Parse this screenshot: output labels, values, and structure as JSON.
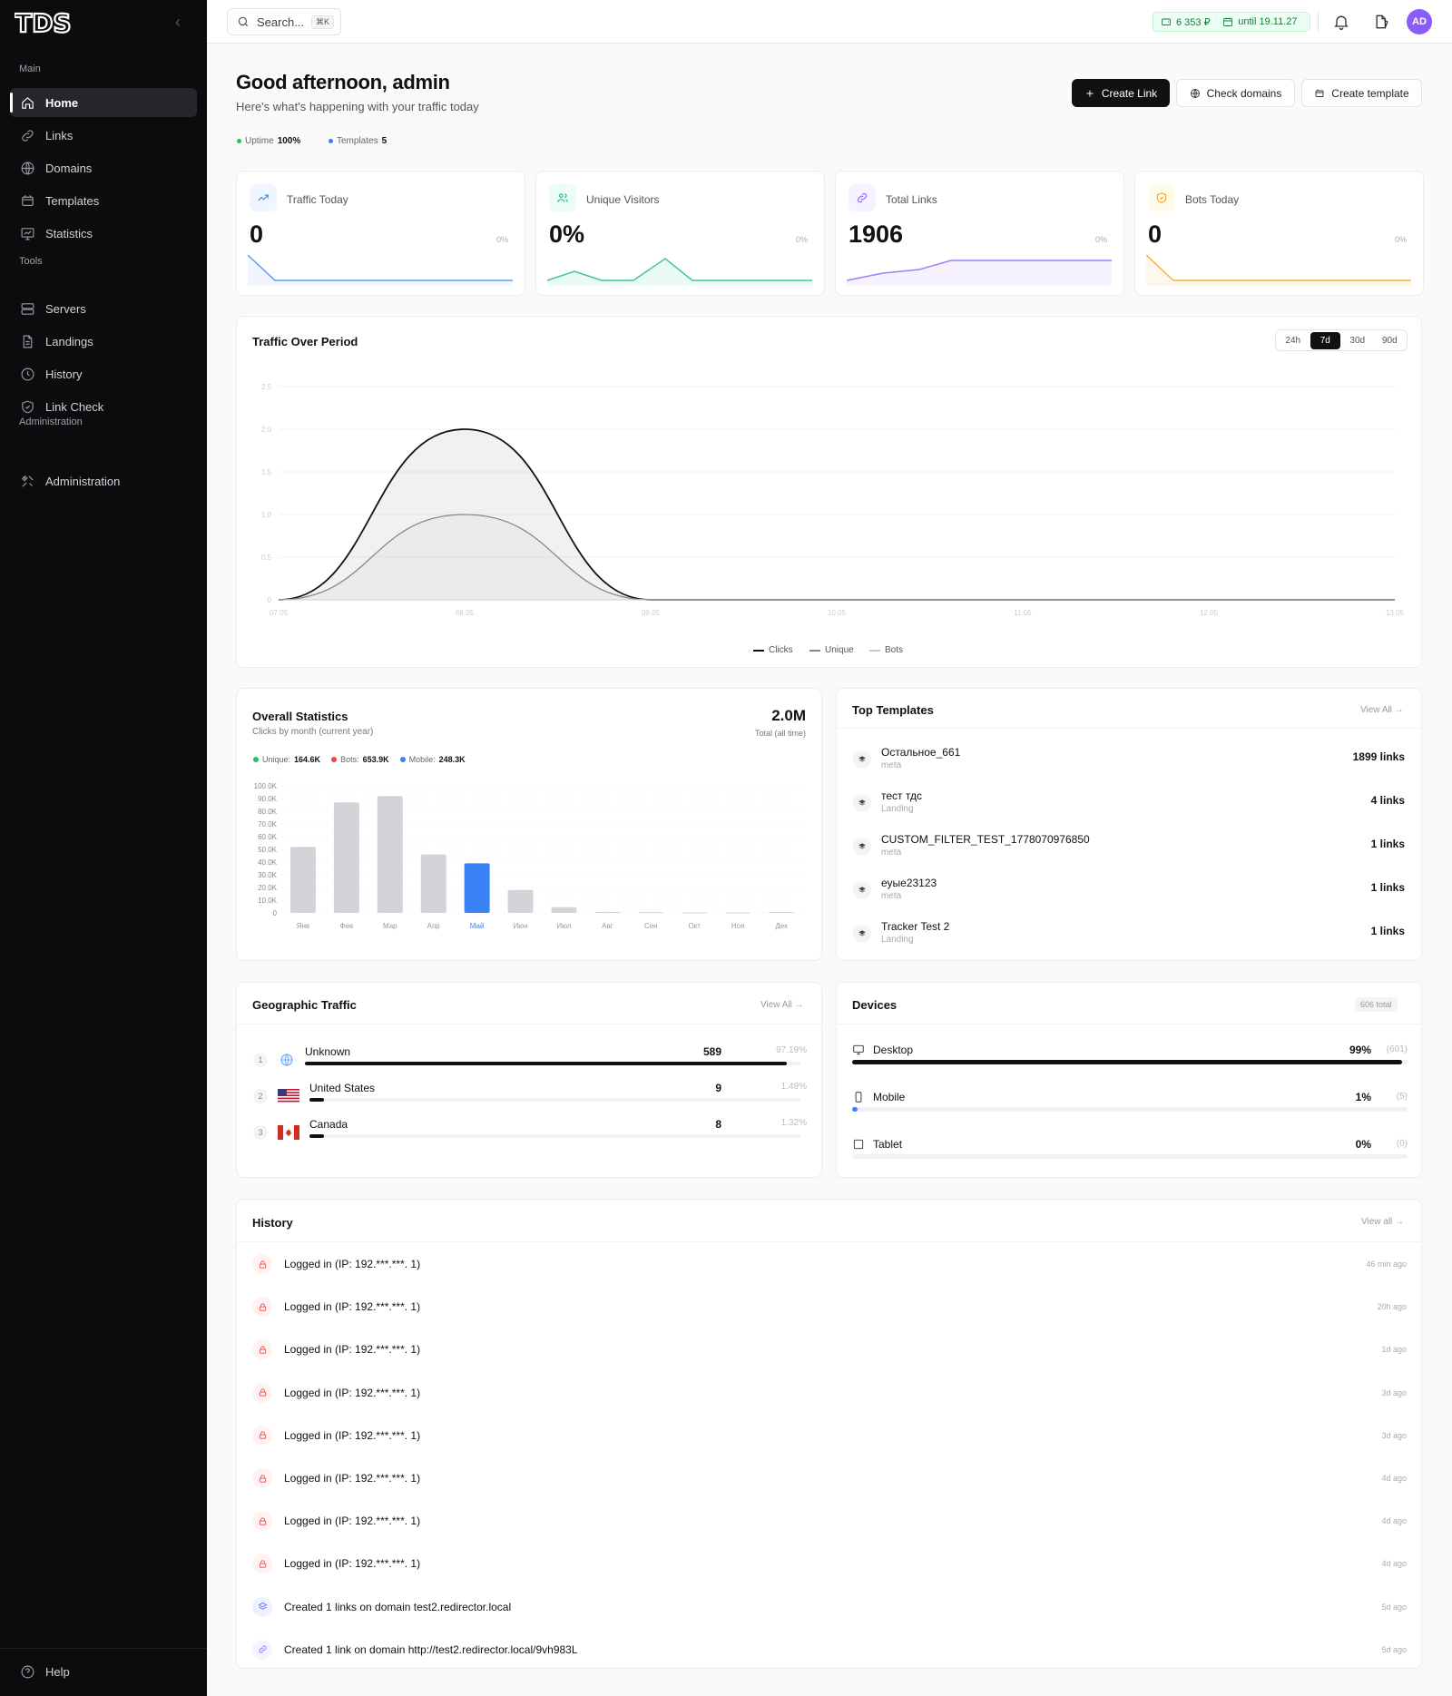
{
  "sidebar": {
    "logo": "TDS",
    "sections": [
      "Main",
      "Tools",
      "Administration"
    ],
    "main_items": [
      {
        "label": "Home",
        "icon": "home-icon"
      },
      {
        "label": "Links",
        "icon": "link-icon"
      },
      {
        "label": "Domains",
        "icon": "globe-icon"
      },
      {
        "label": "Templates",
        "icon": "template-icon"
      },
      {
        "label": "Statistics",
        "icon": "chart-icon"
      }
    ],
    "tools_items": [
      {
        "label": "Servers",
        "icon": "server-icon"
      },
      {
        "label": "Landings",
        "icon": "file-icon"
      },
      {
        "label": "History",
        "icon": "clock-icon"
      },
      {
        "label": "Link Check",
        "icon": "shield-check-icon"
      }
    ],
    "admin_items": [
      {
        "label": "Administration",
        "icon": "tools-icon"
      }
    ],
    "help": "Help"
  },
  "topbar": {
    "search_placeholder": "Search...",
    "shortcut": "⌘K",
    "balance": "6 353 ₽",
    "until": "until 19.11.27",
    "avatar": "AD"
  },
  "header": {
    "greeting": "Good afternoon, admin",
    "subtitle": "Here's what's happening with your traffic today",
    "uptime_label": "Uptime",
    "uptime_value": "100%",
    "templates_label": "Templates",
    "templates_value": "5",
    "buttons": {
      "create_link": "Create Link",
      "check_domains": "Check domains",
      "create_template": "Create template"
    }
  },
  "stats": [
    {
      "label": "Traffic Today",
      "value": "0",
      "pct": "0%",
      "color": "#3b82f6",
      "bg": "#eff6ff"
    },
    {
      "label": "Unique Visitors",
      "value": "0%",
      "pct": "0%",
      "color": "#10b981",
      "bg": "#ecfdf5"
    },
    {
      "label": "Total Links",
      "value": "1906",
      "pct": "0%",
      "color": "#8b5cf6",
      "bg": "#f5f3ff"
    },
    {
      "label": "Bots Today",
      "value": "0",
      "pct": "0%",
      "color": "#f59e0b",
      "bg": "#fffbeb"
    }
  ],
  "traffic": {
    "title": "Traffic Over Period",
    "ranges": [
      "24h",
      "7d",
      "30d",
      "90d"
    ],
    "active_range": "7d",
    "legend": [
      "Clicks",
      "Unique",
      "Bots"
    ]
  },
  "overall": {
    "title": "Overall Statistics",
    "subtitle": "Clicks by month (current year)",
    "total": "2.0M",
    "total_label": "Total (all time)",
    "badges": [
      {
        "label": "Unique:",
        "value": "164.6K",
        "color": "#22c55e"
      },
      {
        "label": "Bots:",
        "value": "653.9K",
        "color": "#ef4444"
      },
      {
        "label": "Mobile:",
        "value": "248.3K",
        "color": "#3b82f6"
      }
    ]
  },
  "top_templates": {
    "title": "Top Templates",
    "view_all": "View All →",
    "items": [
      {
        "name": "Остальное_661",
        "type": "meta",
        "count": "1899 links"
      },
      {
        "name": "тест тдс",
        "type": "Landing",
        "count": "4 links"
      },
      {
        "name": "CUSTOM_FILTER_TEST_1778070976850",
        "type": "meta",
        "count": "1 links"
      },
      {
        "name": "еуые23123",
        "type": "meta",
        "count": "1 links"
      },
      {
        "name": "Tracker Test 2",
        "type": "Landing",
        "count": "1 links"
      }
    ]
  },
  "geo": {
    "title": "Geographic Traffic",
    "view_all": "View All →",
    "items": [
      {
        "rank": "1",
        "name": "Unknown",
        "count": "589",
        "pct": "97.19%",
        "share": 0.9719
      },
      {
        "rank": "2",
        "name": "United States",
        "count": "9",
        "pct": "1.49%",
        "share": 0.0149
      },
      {
        "rank": "3",
        "name": "Canada",
        "count": "8",
        "pct": "1.32%",
        "share": 0.0132
      }
    ]
  },
  "devices": {
    "title": "Devices",
    "total": "606 total",
    "items": [
      {
        "name": "Desktop",
        "pct": "99%",
        "count": "(601)",
        "share": 0.99,
        "color": "#111"
      },
      {
        "name": "Mobile",
        "pct": "1%",
        "count": "(5)",
        "share": 0.01,
        "color": "#3b82f6"
      },
      {
        "name": "Tablet",
        "pct": "0%",
        "count": "(0)",
        "share": 0,
        "color": "#111"
      }
    ]
  },
  "history": {
    "title": "History",
    "view_all": "View all →",
    "items": [
      {
        "text": "Logged in (IP: 192.***.***. 1)",
        "time": "46 min ago",
        "kind": "login"
      },
      {
        "text": "Logged in (IP: 192.***.***. 1)",
        "time": "20h ago",
        "kind": "login"
      },
      {
        "text": "Logged in (IP: 192.***.***. 1)",
        "time": "1d ago",
        "kind": "login"
      },
      {
        "text": "Logged in (IP: 192.***.***. 1)",
        "time": "3d ago",
        "kind": "login"
      },
      {
        "text": "Logged in (IP: 192.***.***. 1)",
        "time": "3d ago",
        "kind": "login"
      },
      {
        "text": "Logged in (IP: 192.***.***. 1)",
        "time": "4d ago",
        "kind": "login"
      },
      {
        "text": "Logged in (IP: 192.***.***. 1)",
        "time": "4d ago",
        "kind": "login"
      },
      {
        "text": "Logged in (IP: 192.***.***. 1)",
        "time": "4d ago",
        "kind": "login"
      },
      {
        "text": "Created 1 links on domain test2.redirector.local",
        "time": "5d ago",
        "kind": "layers"
      },
      {
        "text": "Created 1 link on domain http://test2.redirector.local/9vh983L",
        "time": "5d ago",
        "kind": "link"
      }
    ]
  },
  "chart_data": [
    {
      "type": "area",
      "x": [
        "07.05",
        "08.05",
        "09.05",
        "10.05",
        "11.05",
        "12.05",
        "13.05"
      ],
      "ylim": [
        0,
        2.5
      ],
      "yticks": [
        "0",
        "0.5",
        "1.0",
        "1.5",
        "2.0",
        "2.5"
      ],
      "series": [
        {
          "name": "Clicks",
          "values": [
            0,
            2.0,
            0,
            0,
            0,
            0,
            0
          ]
        },
        {
          "name": "Unique",
          "values": [
            0,
            1.0,
            0,
            0,
            0,
            0,
            0
          ]
        },
        {
          "name": "Bots",
          "values": [
            0,
            0,
            0,
            0,
            0,
            0,
            0
          ]
        }
      ],
      "grid": true,
      "legend": "bottom"
    },
    {
      "type": "bar",
      "categories": [
        "Янв",
        "Фев",
        "Мар",
        "Апр",
        "Май",
        "Июн",
        "Июл",
        "Авг",
        "Сен",
        "Окт",
        "Ноя",
        "Дек"
      ],
      "values": [
        52000,
        87000,
        92000,
        46000,
        39000,
        18000,
        4500,
        800,
        600,
        400,
        300,
        700
      ],
      "highlight": "Май",
      "ylim": [
        0,
        100000
      ],
      "yticks": [
        "0",
        "10.0K",
        "20.0K",
        "30.0K",
        "40.0K",
        "50.0K",
        "60.0K",
        "70.0K",
        "80.0K",
        "90.0K",
        "100.0K"
      ]
    }
  ]
}
